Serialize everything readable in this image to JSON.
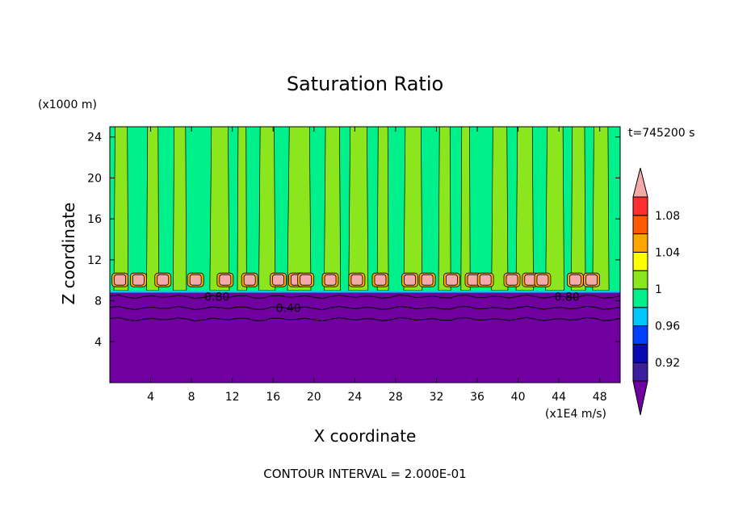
{
  "chart_data": {
    "type": "heatmap",
    "title": "Saturation Ratio",
    "xlabel": "X coordinate",
    "ylabel": "Z coordinate",
    "x_unit": "(x1E4 m/s)",
    "y_unit": "(x1000 m)",
    "time_label": "t=745200 s",
    "footer": "CONTOUR INTERVAL = 2.000E-01",
    "xlim": [
      0,
      50
    ],
    "ylim": [
      0,
      25
    ],
    "x_ticks": [
      4,
      8,
      12,
      16,
      20,
      24,
      28,
      32,
      36,
      40,
      44,
      48
    ],
    "x_tick_labels": [
      "4",
      "8",
      "12",
      "16",
      "20",
      "24",
      "28",
      "32",
      "36",
      "40",
      "44",
      "48"
    ],
    "y_ticks": [
      4,
      8,
      12,
      16,
      20,
      24
    ],
    "y_tick_labels": [
      "4",
      "8",
      "12",
      "16",
      "20",
      "24"
    ],
    "contour_labels": [
      {
        "text": "0.80",
        "x": 10.5,
        "z": 8.4
      },
      {
        "text": "0.40",
        "x": 17.5,
        "z": 7.3
      },
      {
        "text": "0.80",
        "x": 44.8,
        "z": 8.4
      }
    ],
    "colorbar": {
      "levels": [
        0.9,
        0.92,
        0.94,
        0.96,
        0.98,
        1.0,
        1.02,
        1.04,
        1.06,
        1.08,
        1.1
      ],
      "labels": [
        "0.92",
        "0.96",
        "1",
        "1.04",
        "1.08"
      ],
      "label_values": [
        0.92,
        0.96,
        1.0,
        1.04,
        1.08
      ],
      "colors": [
        "#3c1ea0",
        "#0a0ab4",
        "#0040ff",
        "#00c8ff",
        "#00f08c",
        "#8ce61e",
        "#ffff00",
        "#ffa500",
        "#ff5a00",
        "#ff2d2d"
      ],
      "under_color": "#7000a0",
      "over_color": "#f5aaaa"
    },
    "field": {
      "lower_layer": {
        "z_top": 8.8,
        "color": "#7000a0"
      },
      "transition_band": {
        "z_bottom": 8.6,
        "z_top": 9.0,
        "color": "#00f08c"
      },
      "background_color": "#00f08c",
      "plume_color": "#8ce61e",
      "cell_color": "#f5aaaa",
      "cells_x": [
        1.0,
        2.8,
        5.2,
        8.4,
        11.3,
        13.7,
        16.5,
        18.3,
        19.2,
        21.6,
        24.2,
        26.5,
        29.4,
        31.1,
        33.5,
        35.6,
        36.8,
        39.4,
        41.2,
        42.4,
        45.6,
        47.2
      ],
      "plumes": [
        [
          0.4,
          1.8
        ],
        [
          3.6,
          4.8
        ],
        [
          6.2,
          7.5
        ],
        [
          9.8,
          11.7
        ],
        [
          12.5,
          13.4
        ],
        [
          14.6,
          16.2
        ],
        [
          17.4,
          19.7
        ],
        [
          21.0,
          22.6
        ],
        [
          23.4,
          25.3
        ],
        [
          26.2,
          27.3
        ],
        [
          28.8,
          30.6
        ],
        [
          32.2,
          33.4
        ],
        [
          34.4,
          35.3
        ],
        [
          37.4,
          39.0
        ],
        [
          39.8,
          41.5
        ],
        [
          42.7,
          44.5
        ],
        [
          45.2,
          46.6
        ],
        [
          47.3,
          48.9
        ]
      ]
    }
  }
}
